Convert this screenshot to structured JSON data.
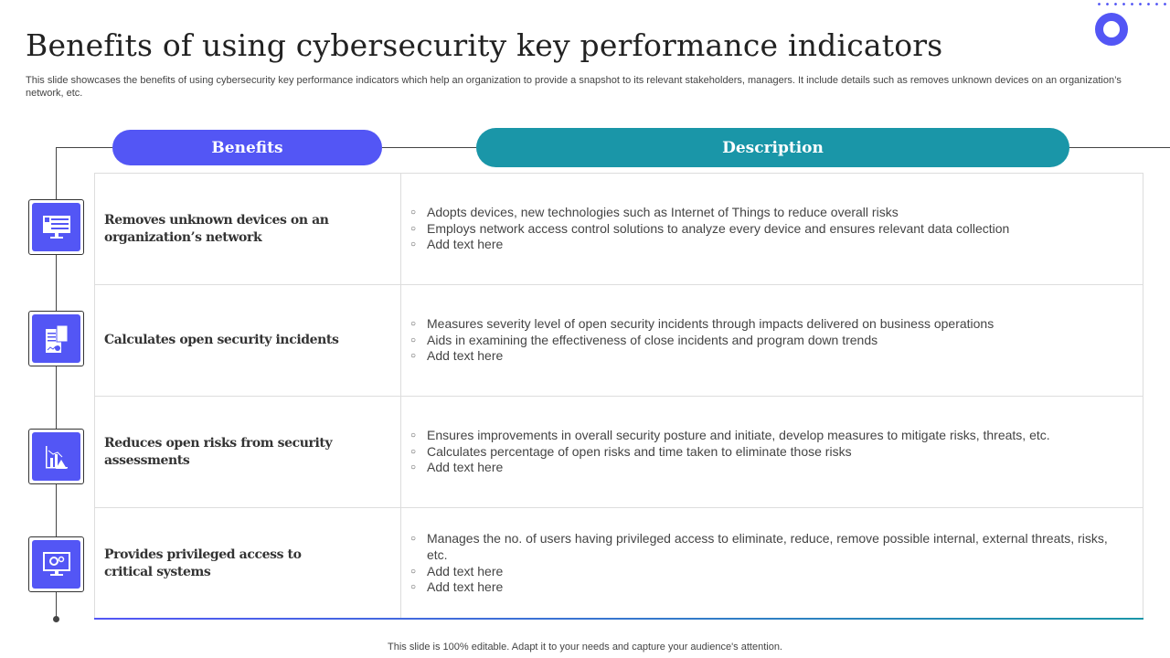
{
  "title": "Benefits of using cybersecurity key performance indicators",
  "subtitle": "This slide showcases the benefits of using cybersecurity key performance indicators which help an organization to provide a snapshot to its relevant stakeholders, managers. It include details such as removes unknown devices on an organization’s network, etc.",
  "headers": {
    "benefits": "Benefits",
    "description": "Description"
  },
  "colors": {
    "benefits": "#5356f5",
    "description": "#1a96a8"
  },
  "rows": [
    {
      "icon": "monitor-icon",
      "benefit": "Removes unknown devices on an organization’s network",
      "bullets": [
        "Adopts devices, new technologies such as Internet of Things to reduce overall risks",
        "Employs network access control solutions to analyze every device and ensures relevant data collection",
        "Add text here"
      ]
    },
    {
      "icon": "report-calculator-icon",
      "benefit": "Calculates open security incidents",
      "bullets": [
        "Measures severity level of open security incidents through impacts delivered on business operations",
        "Aids in examining the effectiveness of close incidents and program down trends",
        "Add text here"
      ]
    },
    {
      "icon": "risk-chart-icon",
      "benefit": "Reduces open risks from security assessments",
      "bullets": [
        "Ensures improvements in overall security posture and initiate, develop measures to mitigate risks, threats, etc.",
        "Calculates percentage of open risks and time taken to eliminate those risks",
        "Add text here"
      ]
    },
    {
      "icon": "settings-monitor-icon",
      "benefit": "Provides privileged access to critical systems",
      "bullets": [
        "Manages the no. of users having privileged access to eliminate, reduce, remove possible internal, external threats, risks, etc.",
        "Add text here",
        "Add text here"
      ]
    }
  ],
  "footer": "This slide is 100% editable. Adapt it to your needs and capture your audience's attention."
}
